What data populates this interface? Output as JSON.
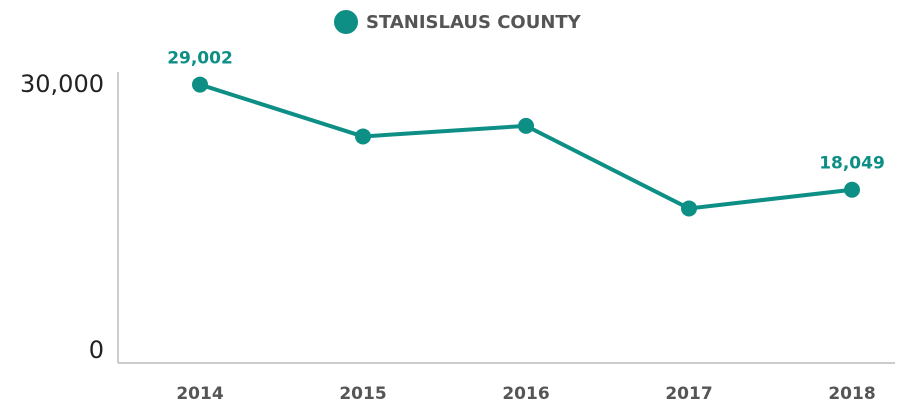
{
  "chart_data": {
    "type": "line",
    "categories": [
      "2014",
      "2015",
      "2016",
      "2017",
      "2018"
    ],
    "series": [
      {
        "name": "STANISLAUS COUNTY",
        "color": "#0e8f86",
        "values": [
          29002,
          23600,
          24700,
          16100,
          18049
        ],
        "value_labels": [
          "29,002",
          null,
          null,
          null,
          "18,049"
        ]
      }
    ],
    "ylim": [
      0,
      30000
    ],
    "yticks": [
      0,
      {
        "value": 30000,
        "label": "30,000"
      }
    ],
    "grid": false,
    "legend": "top"
  }
}
